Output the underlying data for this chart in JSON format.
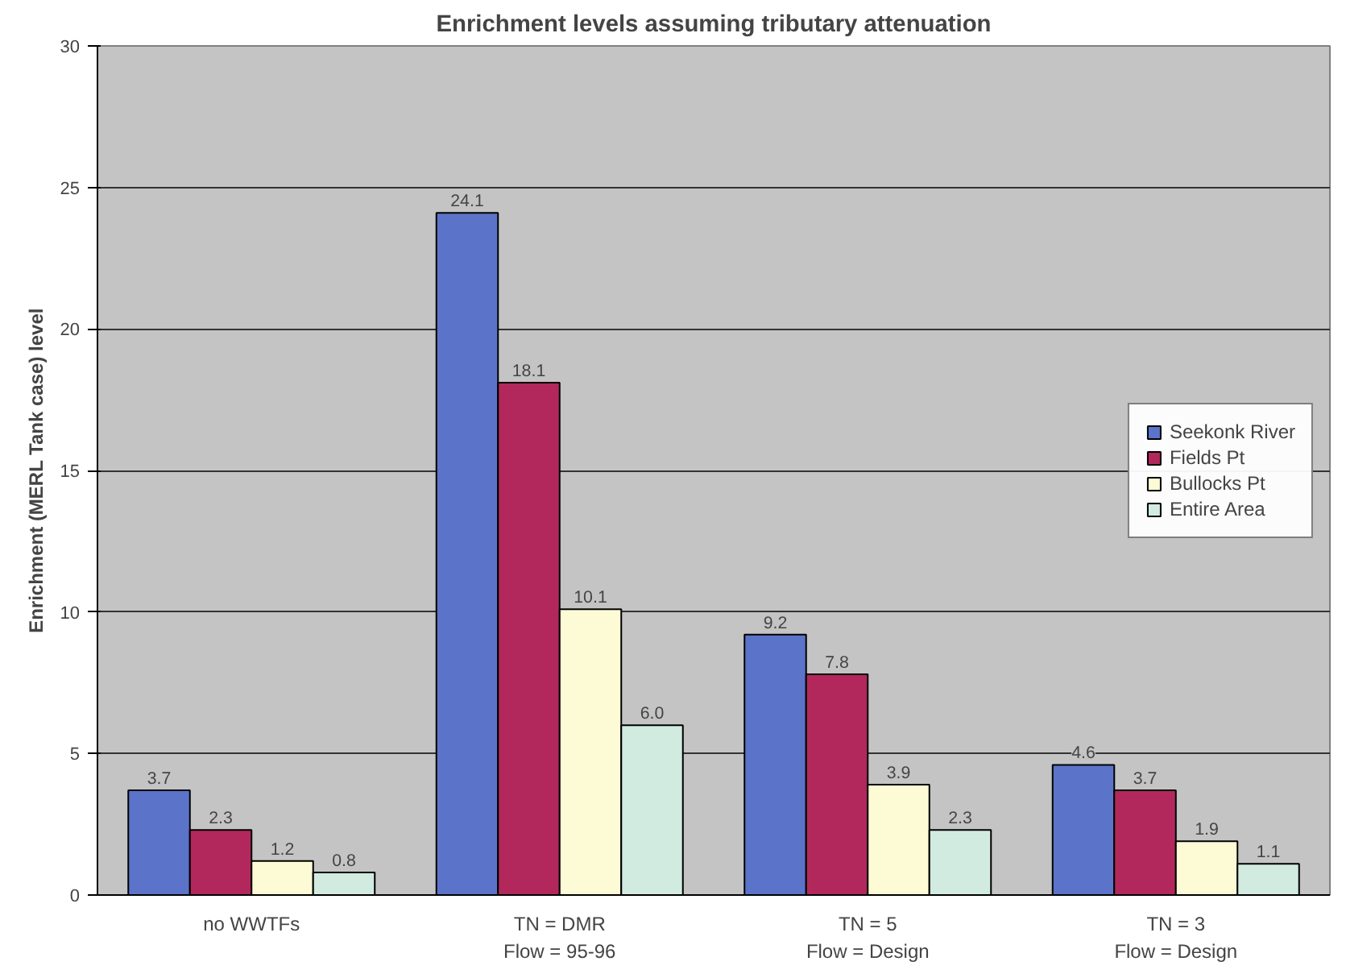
{
  "chart_data": {
    "type": "bar",
    "title": "Enrichment levels assuming tributary attenuation",
    "ylabel": "Enrichment (MERL Tank case) level",
    "categories": [
      "no WWTFs",
      "TN = DMR\nFlow = 95-96",
      "TN = 5\nFlow = Design",
      "TN = 3\nFlow = Design"
    ],
    "series": [
      {
        "name": "Seekonk River",
        "color": "#5b74c9",
        "values": [
          3.7,
          24.1,
          9.2,
          4.6
        ],
        "value_labels": [
          "3.7",
          "24.1",
          "9.2",
          "4.6"
        ]
      },
      {
        "name": "Fields Pt",
        "color": "#b3285c",
        "values": [
          2.3,
          18.1,
          7.8,
          3.7
        ],
        "value_labels": [
          "2.3",
          "18.1",
          "7.8",
          "3.7"
        ]
      },
      {
        "name": "Bullocks Pt",
        "color": "#fdfbd6",
        "values": [
          1.2,
          10.1,
          3.9,
          1.9
        ],
        "value_labels": [
          "1.2",
          "10.1",
          "3.9",
          "1.9"
        ]
      },
      {
        "name": "Entire Area",
        "color": "#d2ebe0",
        "values": [
          0.8,
          6.0,
          2.3,
          1.1
        ],
        "value_labels": [
          "0.8",
          "6.0",
          "2.3",
          "1.1"
        ]
      }
    ],
    "ylim": [
      0,
      30
    ],
    "yticks": [
      0,
      5,
      10,
      15,
      20,
      25,
      30
    ],
    "grid": "y",
    "legend": "right"
  }
}
